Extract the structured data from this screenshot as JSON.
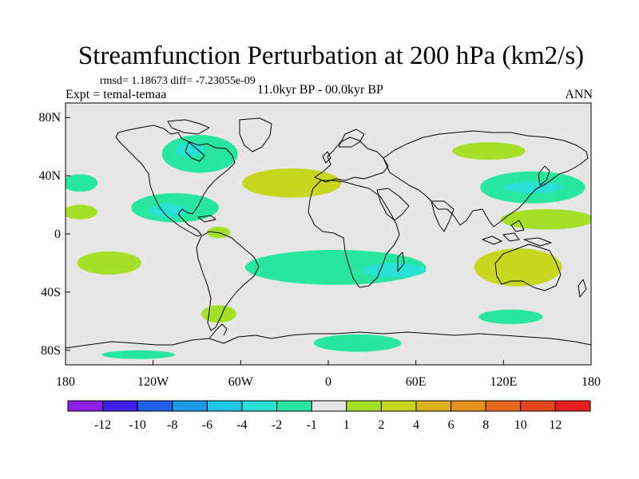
{
  "title": "Streamfunction Perturbation at 200 hPa (km2/s)",
  "stats": "rmsd= 1.18673 diff= -7.23055e-09",
  "experiment": "Expt = temal-temaa",
  "period": "11.0kyr BP - 00.0kyr BP",
  "season": "ANN",
  "map": {
    "projection": "cylindrical-equidistant",
    "lon_range": [
      -180,
      180
    ],
    "lat_range": [
      -90,
      90
    ],
    "lon_ticks": [
      {
        "value": -180,
        "label": "180"
      },
      {
        "value": -120,
        "label": "120W"
      },
      {
        "value": -60,
        "label": "60W"
      },
      {
        "value": 0,
        "label": "0"
      },
      {
        "value": 60,
        "label": "60E"
      },
      {
        "value": 120,
        "label": "120E"
      },
      {
        "value": 180,
        "label": "180"
      }
    ],
    "lat_ticks": [
      {
        "value": 80,
        "label": "80N"
      },
      {
        "value": 40,
        "label": "40N"
      },
      {
        "value": 0,
        "label": "0"
      },
      {
        "value": -40,
        "label": "40S"
      },
      {
        "value": -80,
        "label": "80S"
      }
    ]
  },
  "colorbar": {
    "colors": [
      "#8f1fe6",
      "#3d1ee6",
      "#1e5fe6",
      "#1e9ae6",
      "#1ec6e6",
      "#28e0d4",
      "#28e6a0",
      "#e6e6e6",
      "#a4e028",
      "#c9d61f",
      "#ddb21e",
      "#e6901e",
      "#e66a1e",
      "#e6461e",
      "#e61e1e"
    ],
    "tick_labels": [
      "-12",
      "-10",
      "-8",
      "-6",
      "-4",
      "-2",
      "-1",
      "1",
      "2",
      "4",
      "6",
      "8",
      "10",
      "12"
    ]
  },
  "chart_data": {
    "type": "filled-contour-map",
    "title": "Streamfunction Perturbation at 200 hPa (km2/s)",
    "units": "km2/s",
    "levels": [
      -12,
      -10,
      -8,
      -6,
      -4,
      -2,
      -1,
      1,
      2,
      4,
      6,
      8,
      10,
      12
    ],
    "regions": [
      {
        "name": "north-america-high-lat",
        "lon": -88,
        "lat": 55,
        "rlon": 26,
        "rlat": 13,
        "value": -2
      },
      {
        "name": "north-america-high-lat-core",
        "lon": -95,
        "lat": 58,
        "rlon": 10,
        "rlat": 5,
        "value": -3
      },
      {
        "name": "north-atlantic-positive",
        "lon": -25,
        "lat": 35,
        "rlon": 34,
        "rlat": 10,
        "value": 2
      },
      {
        "name": "north-atlantic-core",
        "lon": -35,
        "lat": 34,
        "rlon": 18,
        "rlat": 5,
        "value": 3
      },
      {
        "name": "central-asia-positive",
        "lon": 110,
        "lat": 57,
        "rlon": 25,
        "rlat": 6,
        "value": 1.5
      },
      {
        "name": "north-pacific-negative",
        "lon": 140,
        "lat": 32,
        "rlon": 36,
        "rlat": 11,
        "value": -2
      },
      {
        "name": "north-pacific-core",
        "lon": 140,
        "lat": 32,
        "rlon": 20,
        "rlat": 4,
        "value": -3
      },
      {
        "name": "east-pacific-positive-band",
        "lon": 150,
        "lat": 10,
        "rlon": 32,
        "rlat": 7,
        "value": 1.5
      },
      {
        "name": "west-atlantic-negative",
        "lon": -170,
        "lat": 35,
        "rlon": 12,
        "rlat": 6,
        "value": -2
      },
      {
        "name": "dateline-west-positive",
        "lon": -170,
        "lat": 15,
        "rlon": 12,
        "rlat": 5,
        "value": 1.5
      },
      {
        "name": "caribbean-negative",
        "lon": -105,
        "lat": 18,
        "rlon": 30,
        "rlat": 10,
        "value": -2
      },
      {
        "name": "caribbean-core",
        "lon": -110,
        "lat": 16,
        "rlon": 12,
        "rlat": 5,
        "value": -3
      },
      {
        "name": "brazil-positive",
        "lon": -75,
        "lat": 1,
        "rlon": 8,
        "rlat": 4,
        "value": 1.5
      },
      {
        "name": "south-atlantic-negative-band",
        "lon": 5,
        "lat": -23,
        "rlon": 62,
        "rlat": 12,
        "value": -2
      },
      {
        "name": "indian-ocean-core",
        "lon": 45,
        "lat": -25,
        "rlon": 22,
        "rlat": 5,
        "value": -3
      },
      {
        "name": "southeast-pacific-positive",
        "lon": -150,
        "lat": -20,
        "rlon": 22,
        "rlat": 8,
        "value": 1.5
      },
      {
        "name": "australia-positive",
        "lon": 130,
        "lat": -23,
        "rlon": 30,
        "rlat": 13,
        "value": 2
      },
      {
        "name": "australia-core",
        "lon": 135,
        "lat": -27,
        "rlon": 10,
        "rlat": 4,
        "value": 3
      },
      {
        "name": "south-america-tip-positive",
        "lon": -75,
        "lat": -55,
        "rlon": 12,
        "rlat": 6,
        "value": 1.5
      },
      {
        "name": "southern-ocean-negative",
        "lon": 125,
        "lat": -57,
        "rlon": 22,
        "rlat": 5,
        "value": -2
      },
      {
        "name": "antarctic-coast-negative",
        "lon": 20,
        "lat": -75,
        "rlon": 30,
        "rlat": 6,
        "value": -2
      },
      {
        "name": "antarctic-pacific-negative",
        "lon": -130,
        "lat": -83,
        "rlon": 25,
        "rlat": 3,
        "value": -2
      }
    ]
  }
}
